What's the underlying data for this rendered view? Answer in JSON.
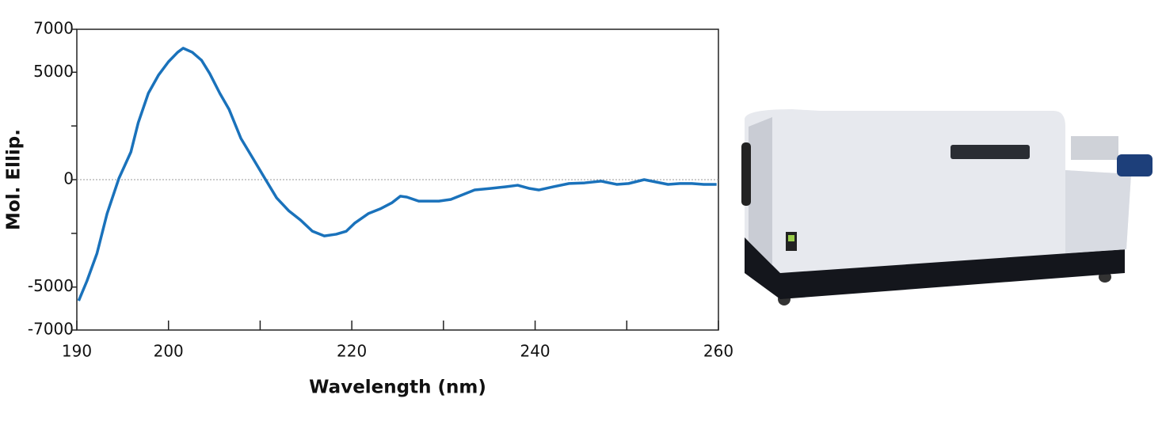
{
  "chart_data": {
    "type": "line",
    "xlabel": "Wavelength (nm)",
    "ylabel": "Mol. Ellip.",
    "xlim": [
      190,
      260
    ],
    "xticks": [
      190,
      200,
      220,
      240,
      260
    ],
    "xminor_ticks": [
      210,
      230,
      250
    ],
    "ylim": [
      -7000,
      7000
    ],
    "yticks": [
      -7000,
      -5000,
      0,
      5000,
      7000
    ],
    "yminor_ticks": [
      -2500,
      2500
    ],
    "zero_line": true,
    "series": [
      {
        "color": "#1a72bb",
        "x": [
          190.2,
          191.1,
          192.2,
          193.3,
          194.6,
          195.2,
          195.9,
          196.7,
          197.8,
          198.9,
          200,
          201,
          201.6,
          202.6,
          203.6,
          204.5,
          205.6,
          206.6,
          207.9,
          209.2,
          210.5,
          211.8,
          213.1,
          214.4,
          215.7,
          217,
          218.3,
          219.4,
          220.3,
          221.8,
          223.1,
          224.4,
          225.3,
          226,
          227.3,
          228.6,
          229.5,
          230.8,
          232.1,
          233.4,
          235.1,
          236.8,
          238.1,
          239.4,
          240.4,
          242,
          243.7,
          245.4,
          247.2,
          248.9,
          250.2,
          251.9,
          253.2,
          254.5,
          255.8,
          257.1,
          258.4,
          259.8
        ],
        "values": [
          -5640,
          -4720,
          -3430,
          -1580,
          70,
          630,
          1290,
          2650,
          4020,
          4860,
          5490,
          5930,
          6120,
          5930,
          5560,
          4940,
          4020,
          3280,
          1920,
          1000,
          70,
          -850,
          -1440,
          -1880,
          -2400,
          -2620,
          -2540,
          -2400,
          -2030,
          -1580,
          -1360,
          -1070,
          -770,
          -810,
          -1000,
          -1000,
          -1000,
          -920,
          -700,
          -480,
          -410,
          -330,
          -260,
          -410,
          -480,
          -330,
          -180,
          -150,
          -70,
          -220,
          -180,
          0,
          -110,
          -220,
          -180,
          -180,
          -220,
          -220
        ]
      }
    ]
  }
}
